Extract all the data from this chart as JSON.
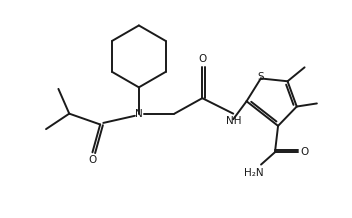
{
  "bg_color": "#ffffff",
  "line_color": "#1a1a1a",
  "line_width": 1.4,
  "font_size": 7.5,
  "figsize": [
    3.52,
    2.18
  ],
  "dpi": 100,
  "xlim": [
    0,
    10
  ],
  "ylim": [
    0,
    7
  ]
}
